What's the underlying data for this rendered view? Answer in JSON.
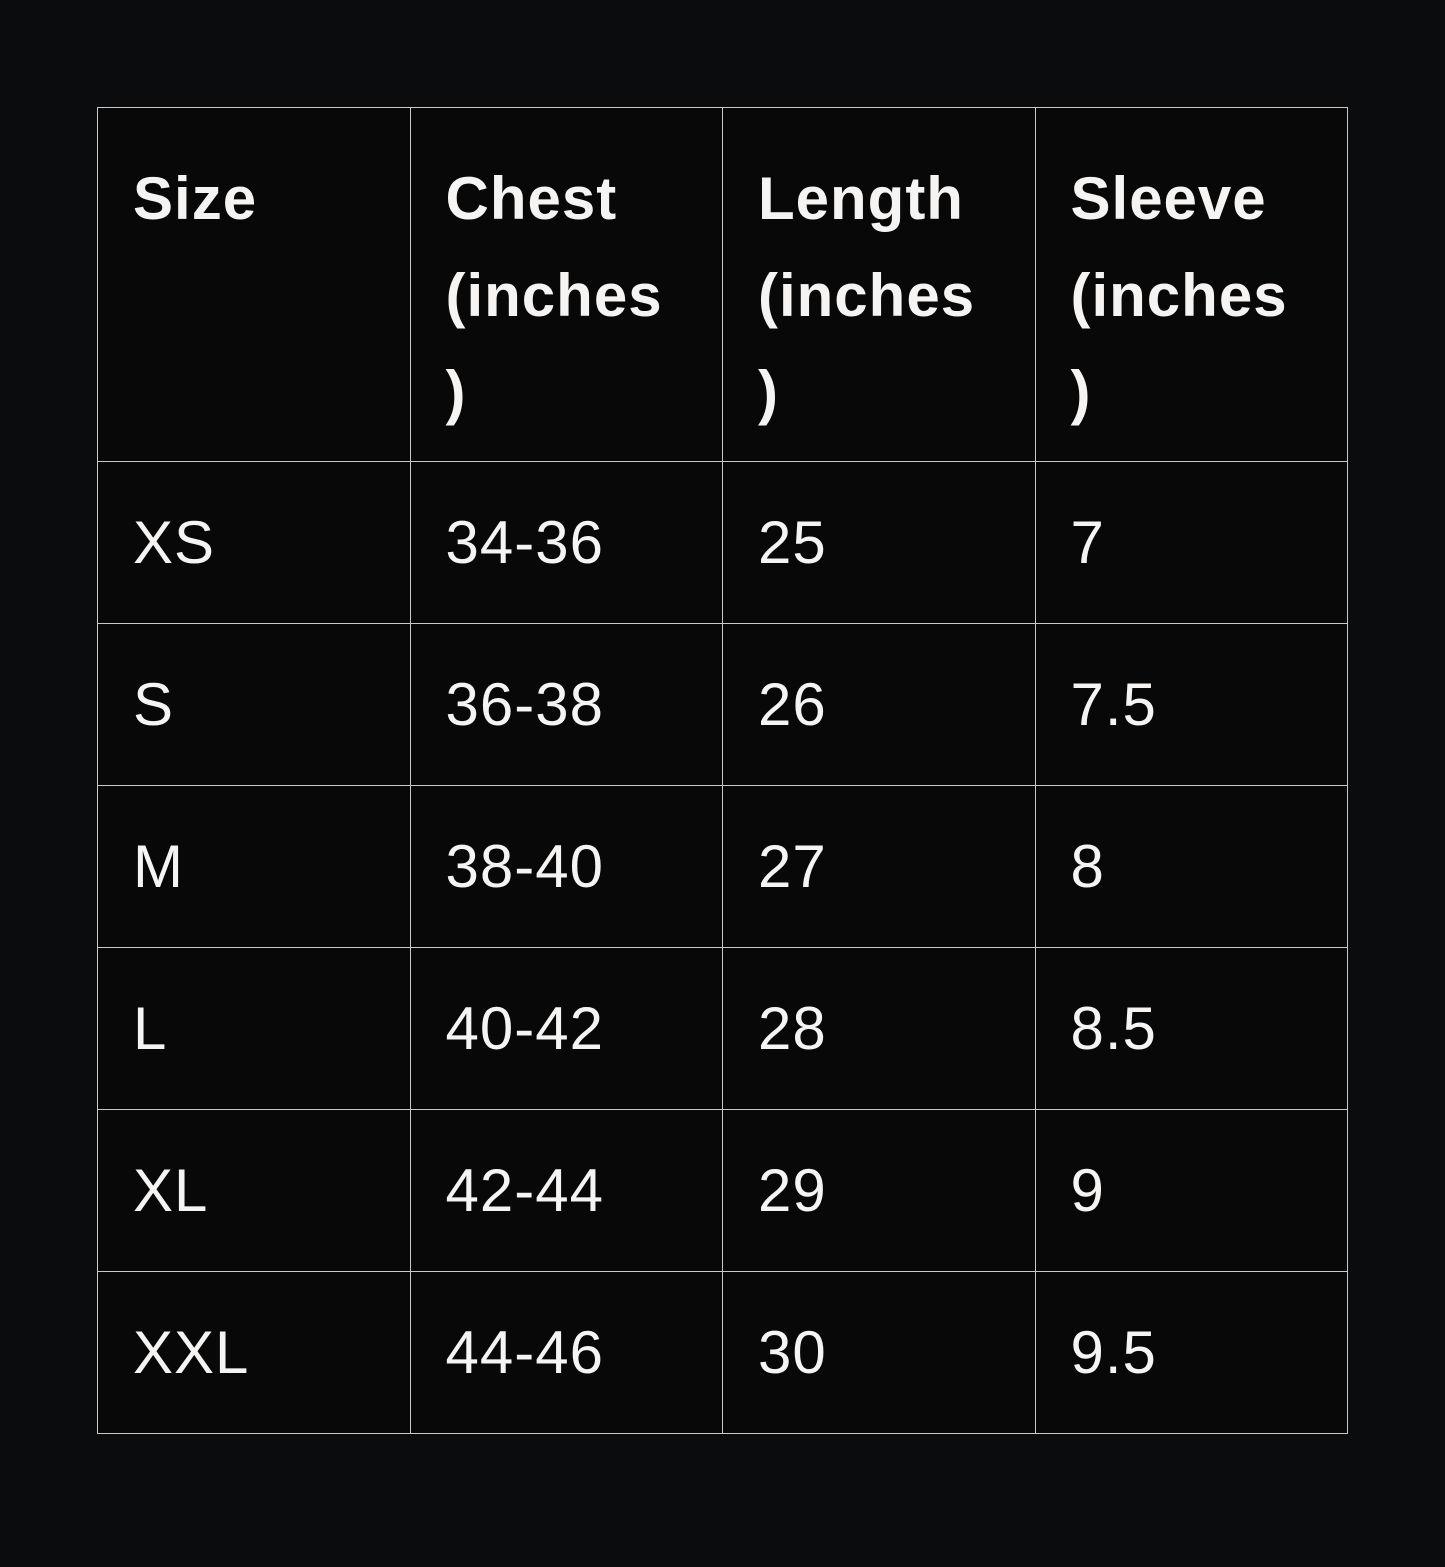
{
  "table": {
    "headers": [
      "Size",
      "Chest (inches)",
      "Length (inches)",
      "Sleeve (inches)"
    ],
    "rows": [
      [
        "XS",
        "34-36",
        "25",
        "7"
      ],
      [
        "S",
        "36-38",
        "26",
        "7.5"
      ],
      [
        "M",
        "38-40",
        "27",
        "8"
      ],
      [
        "L",
        "40-42",
        "28",
        "8.5"
      ],
      [
        "XL",
        "42-44",
        "29",
        "9"
      ],
      [
        "XXL",
        "44-46",
        "30",
        "9.5"
      ]
    ]
  }
}
